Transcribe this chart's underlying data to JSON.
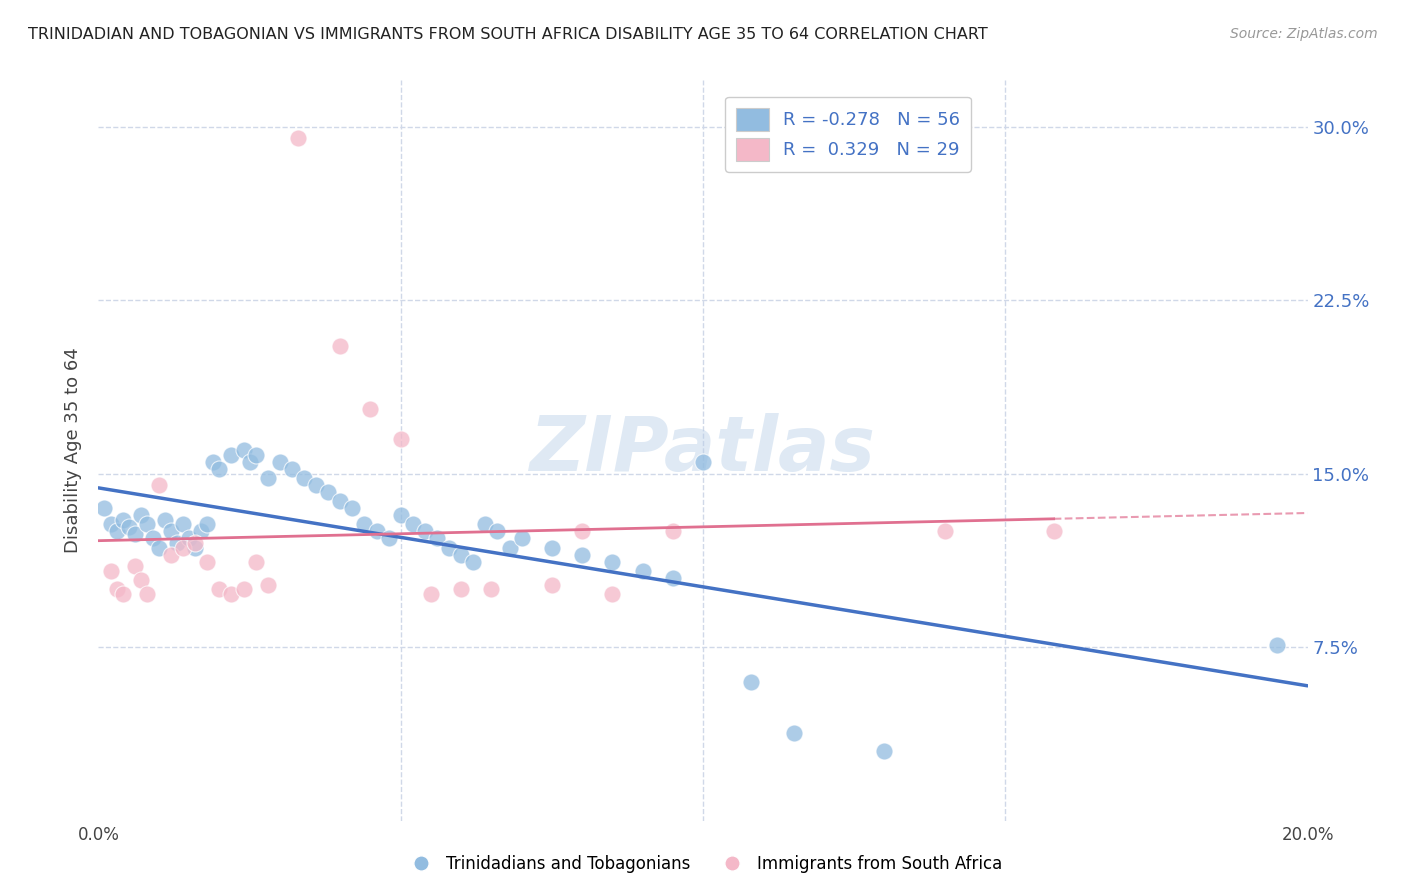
{
  "title": "TRINIDADIAN AND TOBAGONIAN VS IMMIGRANTS FROM SOUTH AFRICA DISABILITY AGE 35 TO 64 CORRELATION CHART",
  "source": "Source: ZipAtlas.com",
  "ylabel": "Disability Age 35 to 64",
  "watermark": "ZIPatlas",
  "xlim": [
    0.0,
    0.2
  ],
  "ylim": [
    0.0,
    0.32
  ],
  "yticks": [
    0.075,
    0.15,
    0.225,
    0.3
  ],
  "ytick_labels": [
    "7.5%",
    "15.0%",
    "22.5%",
    "30.0%"
  ],
  "xticks": [
    0.0,
    0.05,
    0.1,
    0.15,
    0.2
  ],
  "xtick_labels": [
    "0.0%",
    "",
    "",
    "",
    "20.0%"
  ],
  "legend_r1": "R = -0.278",
  "legend_n1": "N = 56",
  "legend_r2": "R =  0.329",
  "legend_n2": "N = 29",
  "blue_color": "#92bce0",
  "pink_color": "#f4b8c8",
  "blue_line_color": "#4472c4",
  "pink_line_color": "#e07090",
  "bg_color": "#ffffff",
  "grid_color": "#d0d8e8",
  "blue_scatter": [
    [
      0.001,
      0.135
    ],
    [
      0.002,
      0.128
    ],
    [
      0.003,
      0.125
    ],
    [
      0.004,
      0.13
    ],
    [
      0.005,
      0.127
    ],
    [
      0.006,
      0.124
    ],
    [
      0.007,
      0.132
    ],
    [
      0.008,
      0.128
    ],
    [
      0.009,
      0.122
    ],
    [
      0.01,
      0.118
    ],
    [
      0.011,
      0.13
    ],
    [
      0.012,
      0.125
    ],
    [
      0.013,
      0.12
    ],
    [
      0.014,
      0.128
    ],
    [
      0.015,
      0.122
    ],
    [
      0.016,
      0.118
    ],
    [
      0.017,
      0.125
    ],
    [
      0.018,
      0.128
    ],
    [
      0.019,
      0.155
    ],
    [
      0.02,
      0.152
    ],
    [
      0.022,
      0.158
    ],
    [
      0.024,
      0.16
    ],
    [
      0.025,
      0.155
    ],
    [
      0.026,
      0.158
    ],
    [
      0.028,
      0.148
    ],
    [
      0.03,
      0.155
    ],
    [
      0.032,
      0.152
    ],
    [
      0.034,
      0.148
    ],
    [
      0.036,
      0.145
    ],
    [
      0.038,
      0.142
    ],
    [
      0.04,
      0.138
    ],
    [
      0.042,
      0.135
    ],
    [
      0.044,
      0.128
    ],
    [
      0.046,
      0.125
    ],
    [
      0.048,
      0.122
    ],
    [
      0.05,
      0.132
    ],
    [
      0.052,
      0.128
    ],
    [
      0.054,
      0.125
    ],
    [
      0.056,
      0.122
    ],
    [
      0.058,
      0.118
    ],
    [
      0.06,
      0.115
    ],
    [
      0.062,
      0.112
    ],
    [
      0.064,
      0.128
    ],
    [
      0.066,
      0.125
    ],
    [
      0.068,
      0.118
    ],
    [
      0.07,
      0.122
    ],
    [
      0.075,
      0.118
    ],
    [
      0.08,
      0.115
    ],
    [
      0.085,
      0.112
    ],
    [
      0.09,
      0.108
    ],
    [
      0.095,
      0.105
    ],
    [
      0.1,
      0.155
    ],
    [
      0.108,
      0.06
    ],
    [
      0.115,
      0.038
    ],
    [
      0.13,
      0.03
    ],
    [
      0.195,
      0.076
    ]
  ],
  "pink_scatter": [
    [
      0.002,
      0.108
    ],
    [
      0.003,
      0.1
    ],
    [
      0.004,
      0.098
    ],
    [
      0.006,
      0.11
    ],
    [
      0.007,
      0.104
    ],
    [
      0.008,
      0.098
    ],
    [
      0.01,
      0.145
    ],
    [
      0.012,
      0.115
    ],
    [
      0.014,
      0.118
    ],
    [
      0.016,
      0.12
    ],
    [
      0.018,
      0.112
    ],
    [
      0.02,
      0.1
    ],
    [
      0.022,
      0.098
    ],
    [
      0.024,
      0.1
    ],
    [
      0.026,
      0.112
    ],
    [
      0.028,
      0.102
    ],
    [
      0.033,
      0.295
    ],
    [
      0.04,
      0.205
    ],
    [
      0.045,
      0.178
    ],
    [
      0.05,
      0.165
    ],
    [
      0.055,
      0.098
    ],
    [
      0.06,
      0.1
    ],
    [
      0.065,
      0.1
    ],
    [
      0.075,
      0.102
    ],
    [
      0.08,
      0.125
    ],
    [
      0.085,
      0.098
    ],
    [
      0.095,
      0.125
    ],
    [
      0.14,
      0.125
    ],
    [
      0.158,
      0.125
    ]
  ]
}
